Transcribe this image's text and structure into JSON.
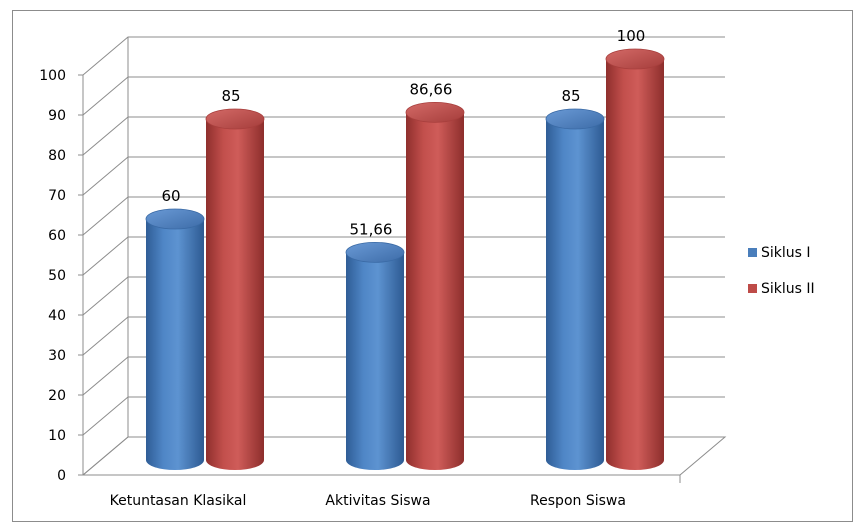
{
  "title": "",
  "chart_data": {
    "type": "bar",
    "categories": [
      "Ketuntasan Klasikal",
      "Aktivitas Siswa",
      "Respon Siswa"
    ],
    "series": [
      {
        "name": "Siklus I",
        "values": [
          60,
          51.66,
          85
        ],
        "labels": [
          "60",
          "51,66",
          "85"
        ],
        "color": "#4a7ebb"
      },
      {
        "name": "Siklus II",
        "values": [
          85,
          86.66,
          100
        ],
        "labels": [
          "85",
          "86,66",
          "100"
        ],
        "color": "#be4b48"
      }
    ],
    "y_ticks": [
      "0",
      "10",
      "20",
      "30",
      "40",
      "50",
      "60",
      "70",
      "80",
      "90",
      "100"
    ],
    "ylim": [
      0,
      100
    ],
    "grid": true,
    "style": "3d-cylinder",
    "legend_position": "right"
  }
}
